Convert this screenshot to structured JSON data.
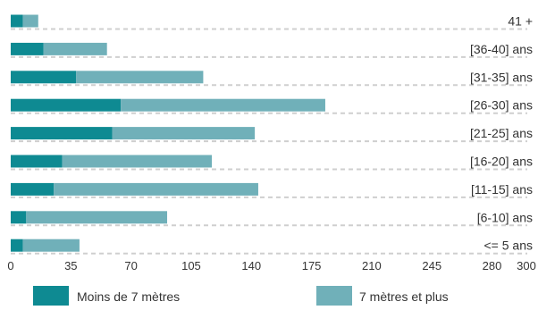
{
  "chart_data": {
    "type": "bar",
    "orientation": "horizontal",
    "stacked": true,
    "categories": [
      "41 +",
      "[36-40] ans",
      "[31-35] ans",
      "[26-30] ans",
      "[21-25] ans",
      "[16-20] ans",
      "[11-15] ans",
      "[6-10] ans",
      "<= 5 ans"
    ],
    "series": [
      {
        "name": "Moins de 7 mètres",
        "color": "#0e8a92",
        "values": [
          7,
          19,
          38,
          64,
          59,
          30,
          25,
          9,
          7
        ]
      },
      {
        "name": "7 mètres et plus",
        "color": "#70b0b9",
        "values": [
          9,
          37,
          74,
          119,
          83,
          87,
          119,
          82,
          33
        ]
      }
    ],
    "x_ticks": [
      "0",
      "35",
      "70",
      "105",
      "140",
      "175",
      "210",
      "245",
      "280",
      "300"
    ],
    "xlim": [
      0,
      300
    ],
    "category_labels_position": "right",
    "grid": "dashed horizontal lines",
    "legend_position": "bottom"
  }
}
